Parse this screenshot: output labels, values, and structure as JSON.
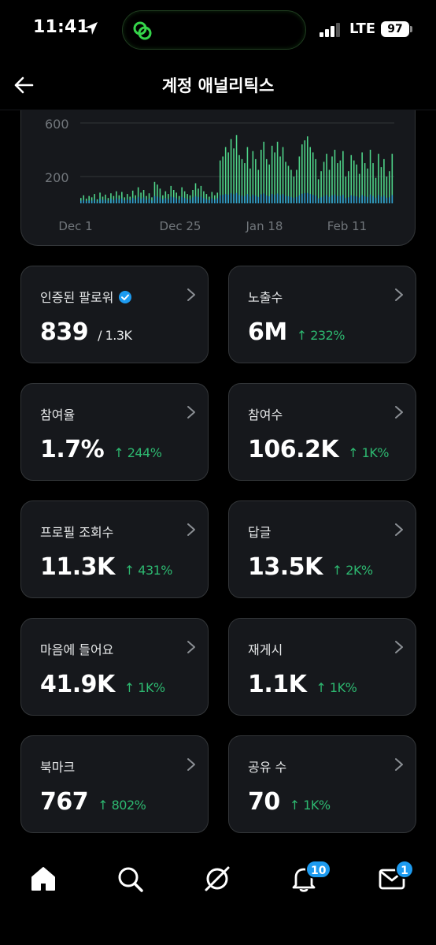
{
  "status_bar": {
    "time": "11:41",
    "network": "LTE",
    "battery": "97"
  },
  "header": {
    "title": "계정 애널리틱스"
  },
  "chart_data": {
    "type": "bar",
    "y_ticks": [
      "600",
      "200"
    ],
    "x_ticks": [
      "Dec 1",
      "Dec 25",
      "Jan 18",
      "Feb 11"
    ],
    "grid": true,
    "series": [
      {
        "values": [
          40,
          60,
          35,
          55,
          45,
          70,
          30,
          80,
          50,
          65,
          40,
          75,
          55,
          90,
          60,
          85,
          45,
          70,
          50,
          95,
          60,
          120,
          80,
          100,
          55,
          75,
          45,
          160,
          140,
          110,
          60,
          90,
          70,
          130,
          100,
          80,
          55,
          120,
          90,
          70,
          60,
          100,
          150,
          110,
          130,
          90,
          70,
          50,
          85,
          60,
          80,
          320,
          350,
          420,
          380,
          480,
          410,
          510,
          360,
          330,
          300,
          420,
          260,
          390,
          330,
          250,
          400,
          460,
          330,
          290,
          430,
          380,
          460,
          350,
          420,
          310,
          280,
          250,
          200,
          250,
          350,
          440,
          470,
          500,
          420,
          380,
          330,
          180,
          240,
          310,
          370,
          250,
          350,
          400,
          300,
          320,
          390,
          200,
          240,
          360,
          320,
          290,
          220,
          380,
          300,
          260,
          400,
          300,
          190,
          370,
          270,
          330,
          200,
          240,
          370
        ]
      },
      {
        "values": [
          20,
          25,
          18,
          22,
          20,
          30,
          15,
          35,
          25,
          30,
          20,
          35,
          25,
          40,
          30,
          38,
          22,
          32,
          25,
          42,
          30,
          48,
          35,
          45,
          28,
          35,
          22,
          55,
          50,
          45,
          30,
          40,
          32,
          50,
          45,
          38,
          28,
          48,
          40,
          32,
          30,
          45,
          55,
          48,
          50,
          40,
          32,
          25,
          38,
          28,
          38,
          60,
          65,
          70,
          65,
          75,
          68,
          78,
          62,
          58,
          55,
          70,
          50,
          66,
          58,
          48,
          68,
          74,
          58,
          52,
          70,
          64,
          74,
          60,
          70,
          56,
          52,
          48,
          42,
          48,
          60,
          72,
          76,
          78,
          70,
          64,
          58,
          38,
          46,
          56,
          62,
          48,
          60,
          66,
          54,
          56,
          64,
          40,
          46,
          60,
          56,
          52,
          44,
          62,
          54,
          48,
          66,
          54,
          40,
          62,
          50,
          58,
          42,
          46,
          62
        ]
      }
    ]
  },
  "metrics": [
    {
      "label": "인증된 팔로워",
      "value": "839",
      "sub": "/ 1.3K",
      "delta": ""
    },
    {
      "label": "노출수",
      "value": "6M",
      "sub": "",
      "delta": "↑ 232%"
    },
    {
      "label": "참여율",
      "value": "1.7%",
      "sub": "",
      "delta": "↑ 244%"
    },
    {
      "label": "참여수",
      "value": "106.2K",
      "sub": "",
      "delta": "↑ 1K%"
    },
    {
      "label": "프로필 조회수",
      "value": "11.3K",
      "sub": "",
      "delta": "↑ 431%"
    },
    {
      "label": "답글",
      "value": "13.5K",
      "sub": "",
      "delta": "↑ 2K%"
    },
    {
      "label": "마음에 들어요",
      "value": "41.9K",
      "sub": "",
      "delta": "↑ 1K%"
    },
    {
      "label": "재게시",
      "value": "1.1K",
      "sub": "",
      "delta": "↑ 1K%"
    },
    {
      "label": "북마크",
      "value": "767",
      "sub": "",
      "delta": "↑ 802%"
    },
    {
      "label": "공유 수",
      "value": "70",
      "sub": "",
      "delta": "↑ 1K%"
    }
  ],
  "nav": {
    "items": [
      "home-icon",
      "search-icon",
      "grok-icon",
      "bell-icon",
      "mail-icon"
    ],
    "notifications_badge": "10",
    "messages_badge": "1"
  },
  "colors": {
    "accent": "#1d9bf0",
    "positive": "#2db870",
    "bar_top": "#4fd68a",
    "bar_bottom": "#2f9fd1",
    "card_bg": "#16181c"
  }
}
